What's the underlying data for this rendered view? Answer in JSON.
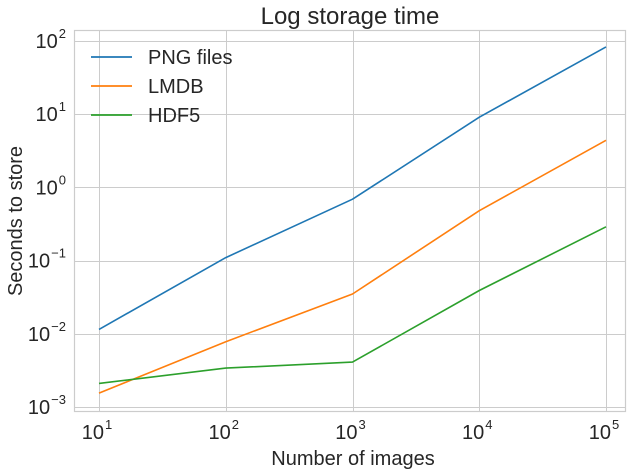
{
  "chart_data": {
    "type": "line",
    "title": "Log storage time",
    "xlabel": "Number of images",
    "ylabel": "Seconds to store",
    "xscale": "log",
    "yscale": "log",
    "x": [
      10,
      100,
      1000,
      10000,
      100000
    ],
    "xlim": [
      6.3,
      160000
    ],
    "ylim": [
      0.00085,
      140
    ],
    "x_ticks": [
      {
        "base": "10",
        "exp": "1",
        "value": 10
      },
      {
        "base": "10",
        "exp": "2",
        "value": 100
      },
      {
        "base": "10",
        "exp": "3",
        "value": 1000
      },
      {
        "base": "10",
        "exp": "4",
        "value": 10000
      },
      {
        "base": "10",
        "exp": "5",
        "value": 100000
      }
    ],
    "y_ticks": [
      {
        "base": "10",
        "exp": "2",
        "value": 100
      },
      {
        "base": "10",
        "exp": "1",
        "value": 10
      },
      {
        "base": "10",
        "exp": "0",
        "value": 1
      },
      {
        "base": "10",
        "exp": "−1",
        "value": 0.1
      },
      {
        "base": "10",
        "exp": "−2",
        "value": 0.01
      },
      {
        "base": "10",
        "exp": "−3",
        "value": 0.001
      }
    ],
    "series": [
      {
        "name": "PNG files",
        "color": "#1f77b4",
        "values": [
          0.0115,
          0.11,
          0.69,
          9.1,
          83
        ]
      },
      {
        "name": "LMDB",
        "color": "#ff7f0e",
        "values": [
          0.00155,
          0.0078,
          0.035,
          0.48,
          4.4
        ]
      },
      {
        "name": "HDF5",
        "color": "#2ca02c",
        "values": [
          0.0021,
          0.0034,
          0.0041,
          0.039,
          0.29
        ]
      }
    ],
    "grid": true,
    "legend_position": "upper left",
    "style": "seaborn-whitegrid"
  }
}
